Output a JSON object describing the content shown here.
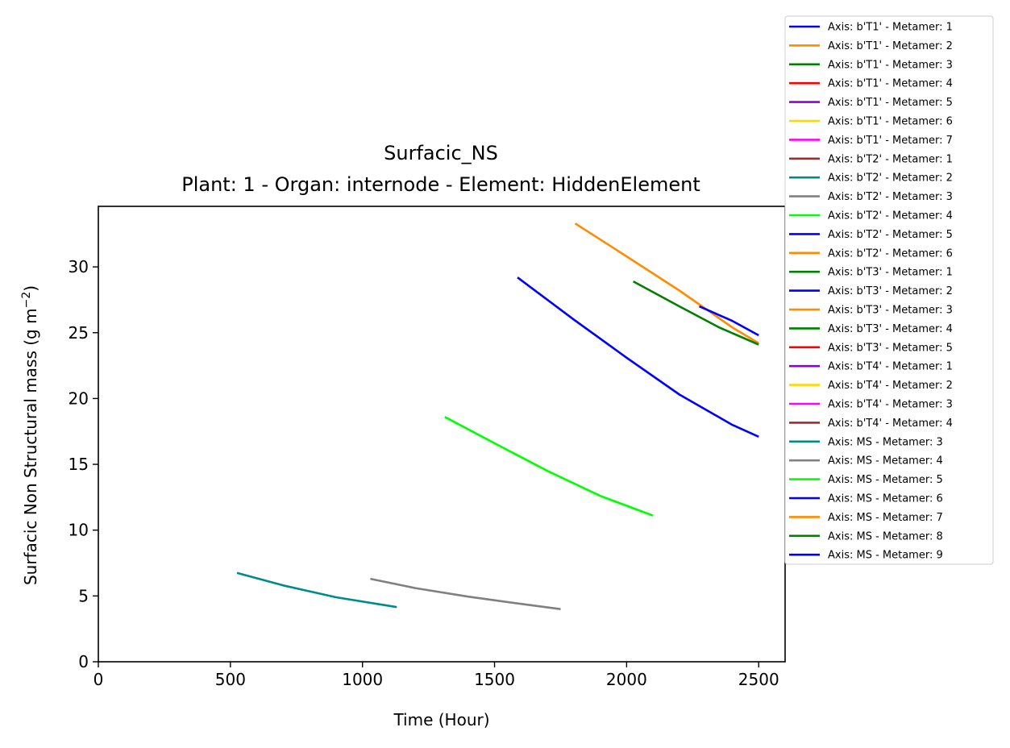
{
  "chart_data": {
    "type": "line",
    "title": "Surfacic_NS",
    "subtitle": "Plant: 1 - Organ: internode - Element: HiddenElement",
    "xlabel": "Time (Hour)",
    "ylabel_main": "Surfacic Non Structural mass (g m",
    "ylabel_exp": "−2",
    "ylabel_close": ")",
    "xlim": [
      0,
      2600
    ],
    "ylim": [
      0,
      34.6
    ],
    "xticks": [
      0,
      500,
      1000,
      1500,
      2000,
      2500
    ],
    "yticks": [
      0,
      5,
      10,
      15,
      20,
      25,
      30
    ],
    "grid": false,
    "legend_position": "right, outside plot",
    "series": [
      {
        "name": "Axis: b'T1' - Metamer: 1",
        "color": "#0000ff",
        "x": [],
        "y": []
      },
      {
        "name": "Axis: b'T1' - Metamer: 2",
        "color": "#ff8c00",
        "x": [],
        "y": []
      },
      {
        "name": "Axis: b'T1' - Metamer: 3",
        "color": "#008000",
        "x": [],
        "y": []
      },
      {
        "name": "Axis: b'T1' - Metamer: 4",
        "color": "#ff0000",
        "x": [],
        "y": []
      },
      {
        "name": "Axis: b'T1' - Metamer: 5",
        "color": "#9400d3",
        "x": [],
        "y": []
      },
      {
        "name": "Axis: b'T1' - Metamer: 6",
        "color": "#ffd700",
        "x": [],
        "y": []
      },
      {
        "name": "Axis: b'T1' - Metamer: 7",
        "color": "#ff00ff",
        "x": [],
        "y": []
      },
      {
        "name": "Axis: b'T2' - Metamer: 1",
        "color": "#a52a2a",
        "x": [],
        "y": []
      },
      {
        "name": "Axis: b'T2' - Metamer: 2",
        "color": "#008b8b",
        "x": [],
        "y": []
      },
      {
        "name": "Axis: b'T2' - Metamer: 3",
        "color": "#808080",
        "x": [],
        "y": []
      },
      {
        "name": "Axis: b'T2' - Metamer: 4",
        "color": "#00ff00",
        "x": [],
        "y": []
      },
      {
        "name": "Axis: b'T2' - Metamer: 5",
        "color": "#0000ff",
        "x": [],
        "y": []
      },
      {
        "name": "Axis: b'T2' - Metamer: 6",
        "color": "#ff8c00",
        "x": [],
        "y": []
      },
      {
        "name": "Axis: b'T3' - Metamer: 1",
        "color": "#008000",
        "x": [],
        "y": []
      },
      {
        "name": "Axis: b'T3' - Metamer: 2",
        "color": "#0000ff",
        "x": [],
        "y": []
      },
      {
        "name": "Axis: b'T3' - Metamer: 3",
        "color": "#ff8c00",
        "x": [],
        "y": []
      },
      {
        "name": "Axis: b'T3' - Metamer: 4",
        "color": "#008000",
        "x": [],
        "y": []
      },
      {
        "name": "Axis: b'T3' - Metamer: 5",
        "color": "#ff0000",
        "x": [],
        "y": []
      },
      {
        "name": "Axis: b'T4' - Metamer: 1",
        "color": "#9400d3",
        "x": [],
        "y": []
      },
      {
        "name": "Axis: b'T4' - Metamer: 2",
        "color": "#ffd700",
        "x": [],
        "y": []
      },
      {
        "name": "Axis: b'T4' - Metamer: 3",
        "color": "#ff00ff",
        "x": [],
        "y": []
      },
      {
        "name": "Axis: b'T4' - Metamer: 4",
        "color": "#a52a2a",
        "x": [],
        "y": []
      },
      {
        "name": "Axis: MS - Metamer: 3",
        "color": "#008b8b",
        "x": [
          525,
          700,
          900,
          1130
        ],
        "y": [
          6.75,
          5.8,
          4.9,
          4.15
        ]
      },
      {
        "name": "Axis: MS - Metamer: 4",
        "color": "#808080",
        "x": [
          1030,
          1200,
          1400,
          1600,
          1750
        ],
        "y": [
          6.3,
          5.6,
          4.95,
          4.4,
          4.0
        ]
      },
      {
        "name": "Axis: MS - Metamer: 5",
        "color": "#00ff00",
        "x": [
          1312,
          1500,
          1700,
          1900,
          2100
        ],
        "y": [
          18.6,
          16.6,
          14.5,
          12.6,
          11.1
        ]
      },
      {
        "name": "Axis: MS - Metamer: 6",
        "color": "#0000ff",
        "x": [
          1587,
          1800,
          2000,
          2200,
          2400,
          2500
        ],
        "y": [
          29.2,
          26.0,
          23.1,
          20.3,
          18.0,
          17.1
        ]
      },
      {
        "name": "Axis: MS - Metamer: 7",
        "color": "#ff8c00",
        "x": [
          1805,
          2000,
          2200,
          2400,
          2500
        ],
        "y": [
          33.3,
          30.8,
          28.2,
          25.4,
          24.2
        ]
      },
      {
        "name": "Axis: MS - Metamer: 8",
        "color": "#008000",
        "x": [
          2025,
          2200,
          2350,
          2500
        ],
        "y": [
          28.9,
          27.0,
          25.4,
          24.1
        ]
      },
      {
        "name": "Axis: MS - Metamer: 9",
        "color": "#0000ff",
        "x": [
          2275,
          2400,
          2500
        ],
        "y": [
          27.0,
          25.9,
          24.8
        ]
      }
    ]
  }
}
